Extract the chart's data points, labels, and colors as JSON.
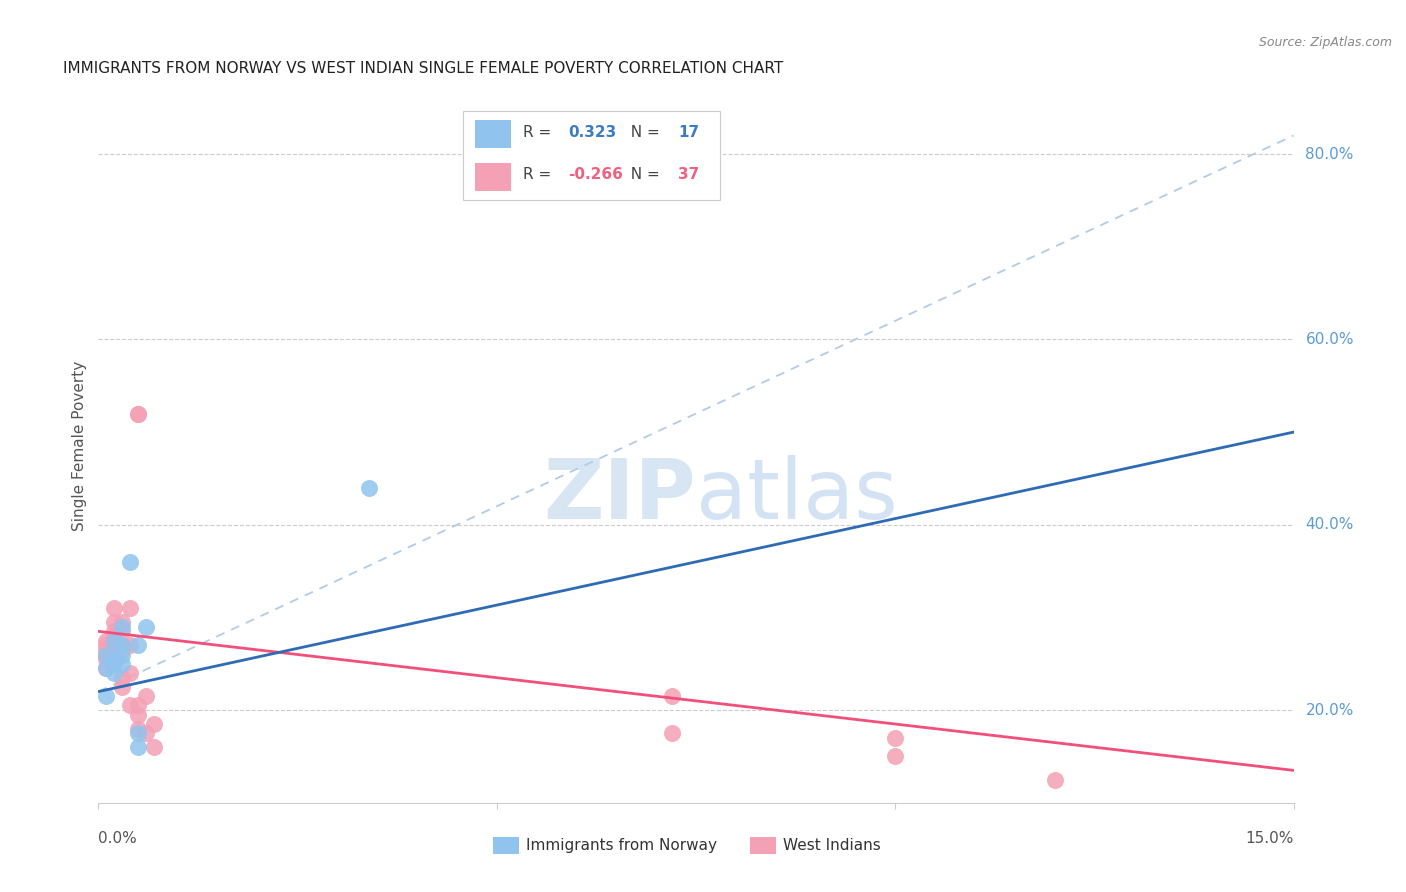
{
  "title": "IMMIGRANTS FROM NORWAY VS WEST INDIAN SINGLE FEMALE POVERTY CORRELATION CHART",
  "source": "Source: ZipAtlas.com",
  "ylabel": "Single Female Poverty",
  "legend_norway_r": "0.323",
  "legend_norway_n": "17",
  "legend_west_r": "-0.266",
  "legend_west_n": "37",
  "norway_color": "#90C4EE",
  "west_color": "#F4A0B5",
  "norway_line_color": "#2F6BB5",
  "west_line_color": "#F0507A",
  "dashed_line_color": "#B0CCE8",
  "watermark_zip": "ZIP",
  "watermark_atlas": "atlas",
  "norway_x": [
    0.001,
    0.001,
    0.001,
    0.002,
    0.002,
    0.002,
    0.002,
    0.003,
    0.003,
    0.003,
    0.003,
    0.004,
    0.005,
    0.005,
    0.005,
    0.006,
    0.034
  ],
  "norway_y": [
    0.26,
    0.245,
    0.215,
    0.275,
    0.255,
    0.25,
    0.24,
    0.29,
    0.27,
    0.26,
    0.25,
    0.36,
    0.175,
    0.27,
    0.16,
    0.29,
    0.44
  ],
  "west_x": [
    0.001,
    0.001,
    0.001,
    0.001,
    0.001,
    0.001,
    0.002,
    0.002,
    0.002,
    0.002,
    0.002,
    0.002,
    0.002,
    0.003,
    0.003,
    0.003,
    0.003,
    0.003,
    0.003,
    0.004,
    0.004,
    0.004,
    0.004,
    0.005,
    0.005,
    0.005,
    0.005,
    0.005,
    0.006,
    0.006,
    0.007,
    0.007,
    0.072,
    0.072,
    0.1,
    0.1,
    0.12
  ],
  "west_y": [
    0.275,
    0.27,
    0.265,
    0.26,
    0.255,
    0.245,
    0.31,
    0.295,
    0.285,
    0.28,
    0.275,
    0.265,
    0.255,
    0.295,
    0.285,
    0.27,
    0.265,
    0.235,
    0.225,
    0.31,
    0.27,
    0.24,
    0.205,
    0.52,
    0.52,
    0.205,
    0.195,
    0.18,
    0.215,
    0.175,
    0.185,
    0.16,
    0.215,
    0.175,
    0.17,
    0.15,
    0.125
  ],
  "norway_trend": [
    0.0,
    0.15,
    0.22,
    0.5
  ],
  "west_trend": [
    0.0,
    0.15,
    0.285,
    0.135
  ],
  "dashed_trend": [
    0.0,
    0.15,
    0.22,
    0.82
  ],
  "xmin": 0.0,
  "xmax": 0.15,
  "ymin": 0.1,
  "ymax": 0.87,
  "xtick_positions": [
    0.0,
    0.05,
    0.1,
    0.15
  ],
  "xtick_labels": [
    "0.0%",
    "",
    "",
    "15.0%"
  ],
  "ytick_vals": [
    0.2,
    0.4,
    0.6,
    0.8
  ],
  "ytick_labels": [
    "20.0%",
    "40.0%",
    "60.0%",
    "80.0%"
  ],
  "grid_color": "#CCCCCC",
  "spine_color": "#CCCCCC",
  "background_color": "#FFFFFF",
  "title_fontsize": 11,
  "source_fontsize": 9,
  "axis_label_color": "#555555",
  "right_label_color": "#5B9BD5"
}
